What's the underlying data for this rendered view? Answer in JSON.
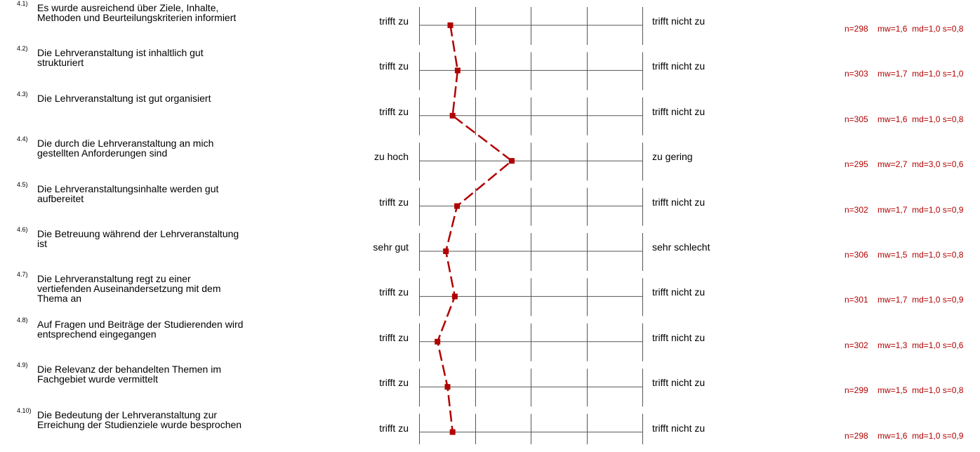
{
  "chart_data": {
    "type": "profile_line",
    "scale": {
      "min": 1,
      "max": 5,
      "ticks": [
        1,
        2,
        3,
        4,
        5
      ]
    },
    "line_color": "#b00000",
    "grid_color": "#555555",
    "items": [
      {
        "number": "4.1)",
        "text": "Es wurde ausreichend über Ziele, Inhalte,\nMethoden und Beurteilungskriterien informiert",
        "left_label": "trifft zu",
        "right_label": "trifft nicht zu",
        "n": "n=298",
        "mw": "mw=1,6",
        "md": "md=1,0",
        "s": "s=0,8",
        "value": 1.56
      },
      {
        "number": "4.2)",
        "text": "Die Lehrveranstaltung ist inhaltlich gut\nstrukturiert",
        "left_label": "trifft zu",
        "right_label": "trifft nicht zu",
        "n": "n=303",
        "mw": "mw=1,7",
        "md": "md=1,0",
        "s": "s=1,0",
        "value": 1.69
      },
      {
        "number": "4.3)",
        "text": "Die Lehrveranstaltung ist gut organisiert",
        "left_label": "trifft zu",
        "right_label": "trifft nicht zu",
        "n": "n=305",
        "mw": "mw=1,6",
        "md": "md=1,0",
        "s": "s=0,8",
        "value": 1.6
      },
      {
        "number": "4.4)",
        "text": "Die durch die Lehrveranstaltung an mich\ngestellten Anforderungen sind",
        "left_label": "zu hoch",
        "right_label": "zu gering",
        "n": "n=295",
        "mw": "mw=2,7",
        "md": "md=3,0",
        "s": "s=0,6",
        "value": 2.66
      },
      {
        "number": "4.5)",
        "text": "Die Lehrveranstaltungsinhalte werden gut\naufbereitet",
        "left_label": "trifft zu",
        "right_label": "trifft nicht zu",
        "n": "n=302",
        "mw": "mw=1,7",
        "md": "md=1,0",
        "s": "s=0,9",
        "value": 1.68
      },
      {
        "number": "4.6)",
        "text": "Die Betreuung während der Lehrveranstaltung\nist",
        "left_label": "sehr gut",
        "right_label": "sehr schlecht",
        "n": "n=306",
        "mw": "mw=1,5",
        "md": "md=1,0",
        "s": "s=0,8",
        "value": 1.48
      },
      {
        "number": "4.7)",
        "text": "Die Lehrveranstaltung regt zu einer\nvertiefenden Auseinandersetzung mit dem\nThema an",
        "left_label": "trifft zu",
        "right_label": "trifft nicht zu",
        "n": "n=301",
        "mw": "mw=1,7",
        "md": "md=1,0",
        "s": "s=0,9",
        "value": 1.64
      },
      {
        "number": "4.8)",
        "text": "Auf Fragen und Beiträge der Studierenden wird\nentsprechend eingegangen",
        "left_label": "trifft zu",
        "right_label": "trifft nicht zu",
        "n": "n=302",
        "mw": "mw=1,3",
        "md": "md=1,0",
        "s": "s=0,6",
        "value": 1.33
      },
      {
        "number": "4.9)",
        "text": "Die Relevanz der behandelten Themen im\nFachgebiet wurde vermittelt",
        "left_label": "trifft zu",
        "right_label": "trifft nicht zu",
        "n": "n=299",
        "mw": "mw=1,5",
        "md": "md=1,0",
        "s": "s=0,8",
        "value": 1.51
      },
      {
        "number": "4.10)",
        "text": "Die Bedeutung der Lehrveranstaltung zur\nErreichung der Studienziele wurde besprochen",
        "left_label": "trifft zu",
        "right_label": "trifft nicht zu",
        "n": "n=298",
        "mw": "mw=1,6",
        "md": "md=1,0",
        "s": "s=0,9",
        "value": 1.6
      }
    ]
  }
}
